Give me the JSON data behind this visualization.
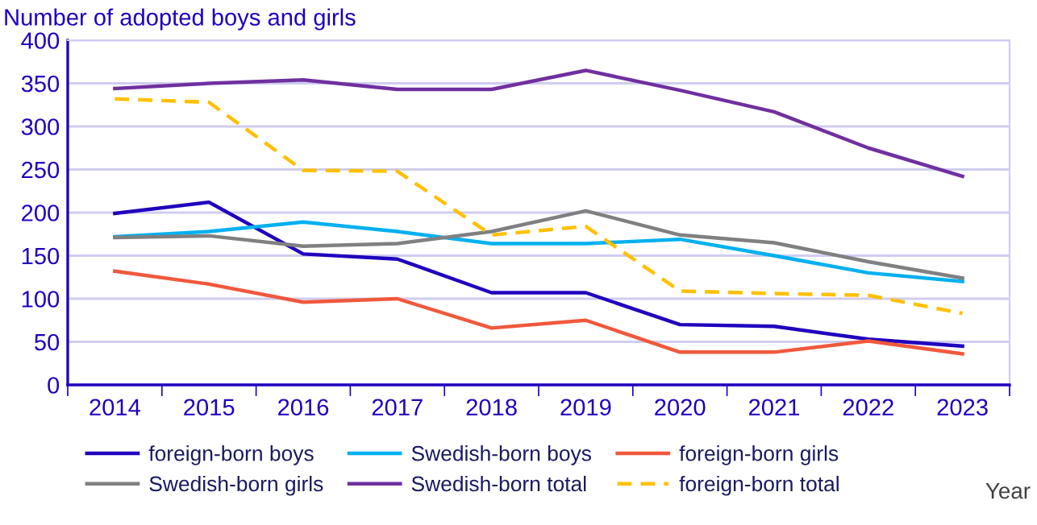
{
  "chart_data": {
    "type": "line",
    "ylabel": "Number of adopted boys and girls",
    "xlabel": "Year",
    "categories": [
      "2014",
      "2015",
      "2016",
      "2017",
      "2018",
      "2019",
      "2020",
      "2021",
      "2022",
      "2023"
    ],
    "series": [
      {
        "name": "foreign-born boys",
        "color": "#1e00be",
        "values": [
          199,
          212,
          152,
          146,
          107,
          107,
          70,
          68,
          53,
          45
        ]
      },
      {
        "name": "Swedish-born boys",
        "color": "#00b0f0",
        "values": [
          172,
          178,
          189,
          178,
          164,
          164,
          169,
          150,
          130,
          120
        ]
      },
      {
        "name": "foreign-born girls",
        "color": "#f0583c",
        "values": [
          132,
          117,
          96,
          100,
          66,
          75,
          38,
          38,
          51,
          36
        ]
      },
      {
        "name": "Swedish-born girls",
        "color": "#808080",
        "values": [
          171,
          173,
          161,
          164,
          178,
          202,
          174,
          165,
          143,
          124
        ]
      },
      {
        "name": "Swedish-born total",
        "color": "#7030a0",
        "values": [
          344,
          350,
          354,
          343,
          343,
          365,
          342,
          317,
          275,
          242
        ]
      },
      {
        "name": "foreign-born total",
        "color": "#ffc000",
        "line_style": "dashed",
        "values": [
          332,
          328,
          249,
          248,
          174,
          184,
          109,
          106,
          104,
          83
        ]
      }
    ],
    "ylim": [
      0,
      400
    ],
    "yticks": [
      0,
      50,
      100,
      150,
      200,
      250,
      300,
      350,
      400
    ],
    "grid": "y",
    "legend": "bottom"
  }
}
